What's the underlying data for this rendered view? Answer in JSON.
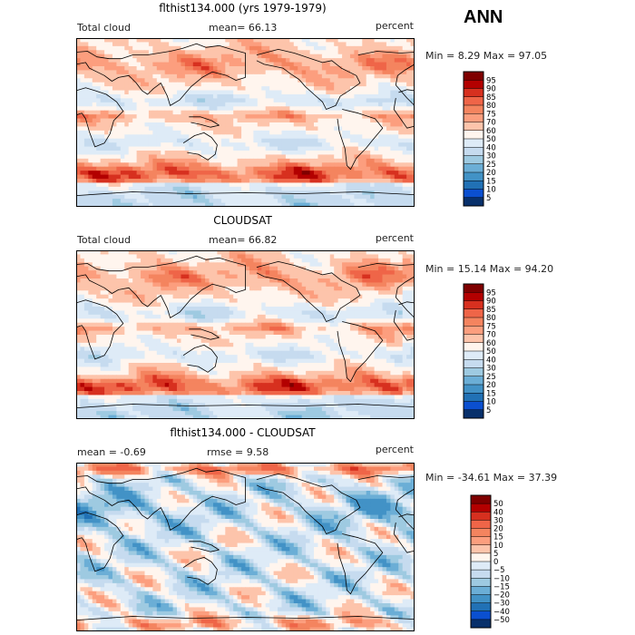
{
  "season": "ANN",
  "panels": [
    {
      "title": "flthist134.000 (yrs 1979-1979)",
      "left_label": "Total cloud",
      "center_label": "mean=  66.13",
      "right_label": "percent",
      "minmax": "Min =    8.29 Max =  97.05",
      "scale": "abs"
    },
    {
      "title": "CLOUDSAT",
      "left_label": "Total cloud",
      "center_label": "mean=  66.82",
      "right_label": "percent",
      "minmax": "Min =  15.14 Max =  94.20",
      "scale": "abs"
    },
    {
      "title": "flthist134.000 - CLOUDSAT",
      "left_label": "mean =   -0.69",
      "center_label": "rmse =    9.58",
      "right_label": "percent",
      "minmax": "Min = -34.61 Max =  37.39",
      "scale": "diff"
    }
  ],
  "colorbars": {
    "abs": {
      "labels": [
        "95",
        "90",
        "85",
        "80",
        "75",
        "70",
        "60",
        "50",
        "40",
        "30",
        "25",
        "20",
        "15",
        "10",
        "5"
      ],
      "colors": [
        "#7f0000",
        "#b30000",
        "#d7301f",
        "#ef6548",
        "#f4845f",
        "#fc9e7e",
        "#fdc4ab",
        "#fff5ee",
        "#deebf7",
        "#c6dbef",
        "#9ecae1",
        "#6baed6",
        "#4292c6",
        "#2171b5",
        "#0b4fd0",
        "#08306b"
      ]
    },
    "diff": {
      "labels": [
        "50",
        "40",
        "30",
        "20",
        "15",
        "10",
        "5",
        "0",
        "−5",
        "−10",
        "−15",
        "−20",
        "−30",
        "−40",
        "−50"
      ],
      "colors": [
        "#7f0000",
        "#b30000",
        "#d7301f",
        "#ef6548",
        "#f4845f",
        "#fc9e7e",
        "#fdc4ab",
        "#fff5ee",
        "#deebf7",
        "#c6dbef",
        "#9ecae1",
        "#6baed6",
        "#4292c6",
        "#2171b5",
        "#0b4fd0",
        "#08306b"
      ]
    }
  }
}
